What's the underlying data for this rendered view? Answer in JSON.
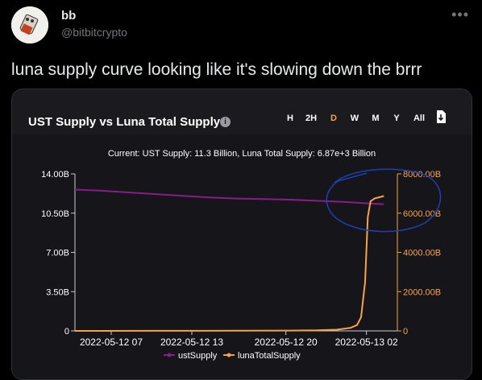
{
  "tweet": {
    "author_name": "bb",
    "author_handle": "@bitbitcrypto",
    "text": "luna supply curve looking like it's slowing down the brrr"
  },
  "card": {
    "title": "UST Supply vs Luna Total Supply",
    "info_icon": "info-icon",
    "range_buttons": [
      "H",
      "2H",
      "D",
      "W",
      "M",
      "Y",
      "All"
    ],
    "active_range": "D",
    "download_icon": "download-icon"
  },
  "colors": {
    "ust": "#8a1c8a",
    "luna": "#f7a24b",
    "active": "#f7a24b",
    "annotation": "#1f3fb5"
  },
  "chart_data": {
    "type": "line",
    "subtitle": "Current: UST Supply: 11.3 Billion, Luna Total Supply: 6.87e+3 Billion",
    "x_tick_labels": [
      "2022-05-12 07",
      "2022-05-12 13",
      "2022-05-12 20",
      "2022-05-13 02"
    ],
    "y_left_ticks": [
      "0",
      "3.50B",
      "7.00B",
      "10.50B",
      "14.00B"
    ],
    "y_right_ticks": [
      "0",
      "2000.00B",
      "4000.00B",
      "6000.00B",
      "8000.00B"
    ],
    "y_left_range": [
      0,
      14
    ],
    "y_right_range": [
      0,
      8000
    ],
    "x_hours": [
      0,
      24
    ],
    "legend": [
      "ustSupply",
      "lunaTotalSupply"
    ],
    "series": [
      {
        "name": "ustSupply",
        "axis": "left",
        "unit": "B",
        "x": [
          0,
          2,
          4,
          6,
          8,
          10,
          12,
          14,
          16,
          18,
          20,
          22,
          23
        ],
        "y": [
          12.6,
          12.5,
          12.35,
          12.2,
          12.05,
          11.9,
          11.8,
          11.75,
          11.7,
          11.6,
          11.5,
          11.35,
          11.3
        ]
      },
      {
        "name": "lunaTotalSupply",
        "axis": "right",
        "unit": "B",
        "x": [
          0,
          6,
          12,
          16,
          18,
          19.5,
          20.5,
          21,
          21.3,
          21.6,
          21.8,
          22,
          22.3,
          23
        ],
        "y": [
          2,
          5,
          8,
          15,
          30,
          60,
          150,
          300,
          700,
          2500,
          5800,
          6600,
          6750,
          6870
        ]
      }
    ]
  }
}
